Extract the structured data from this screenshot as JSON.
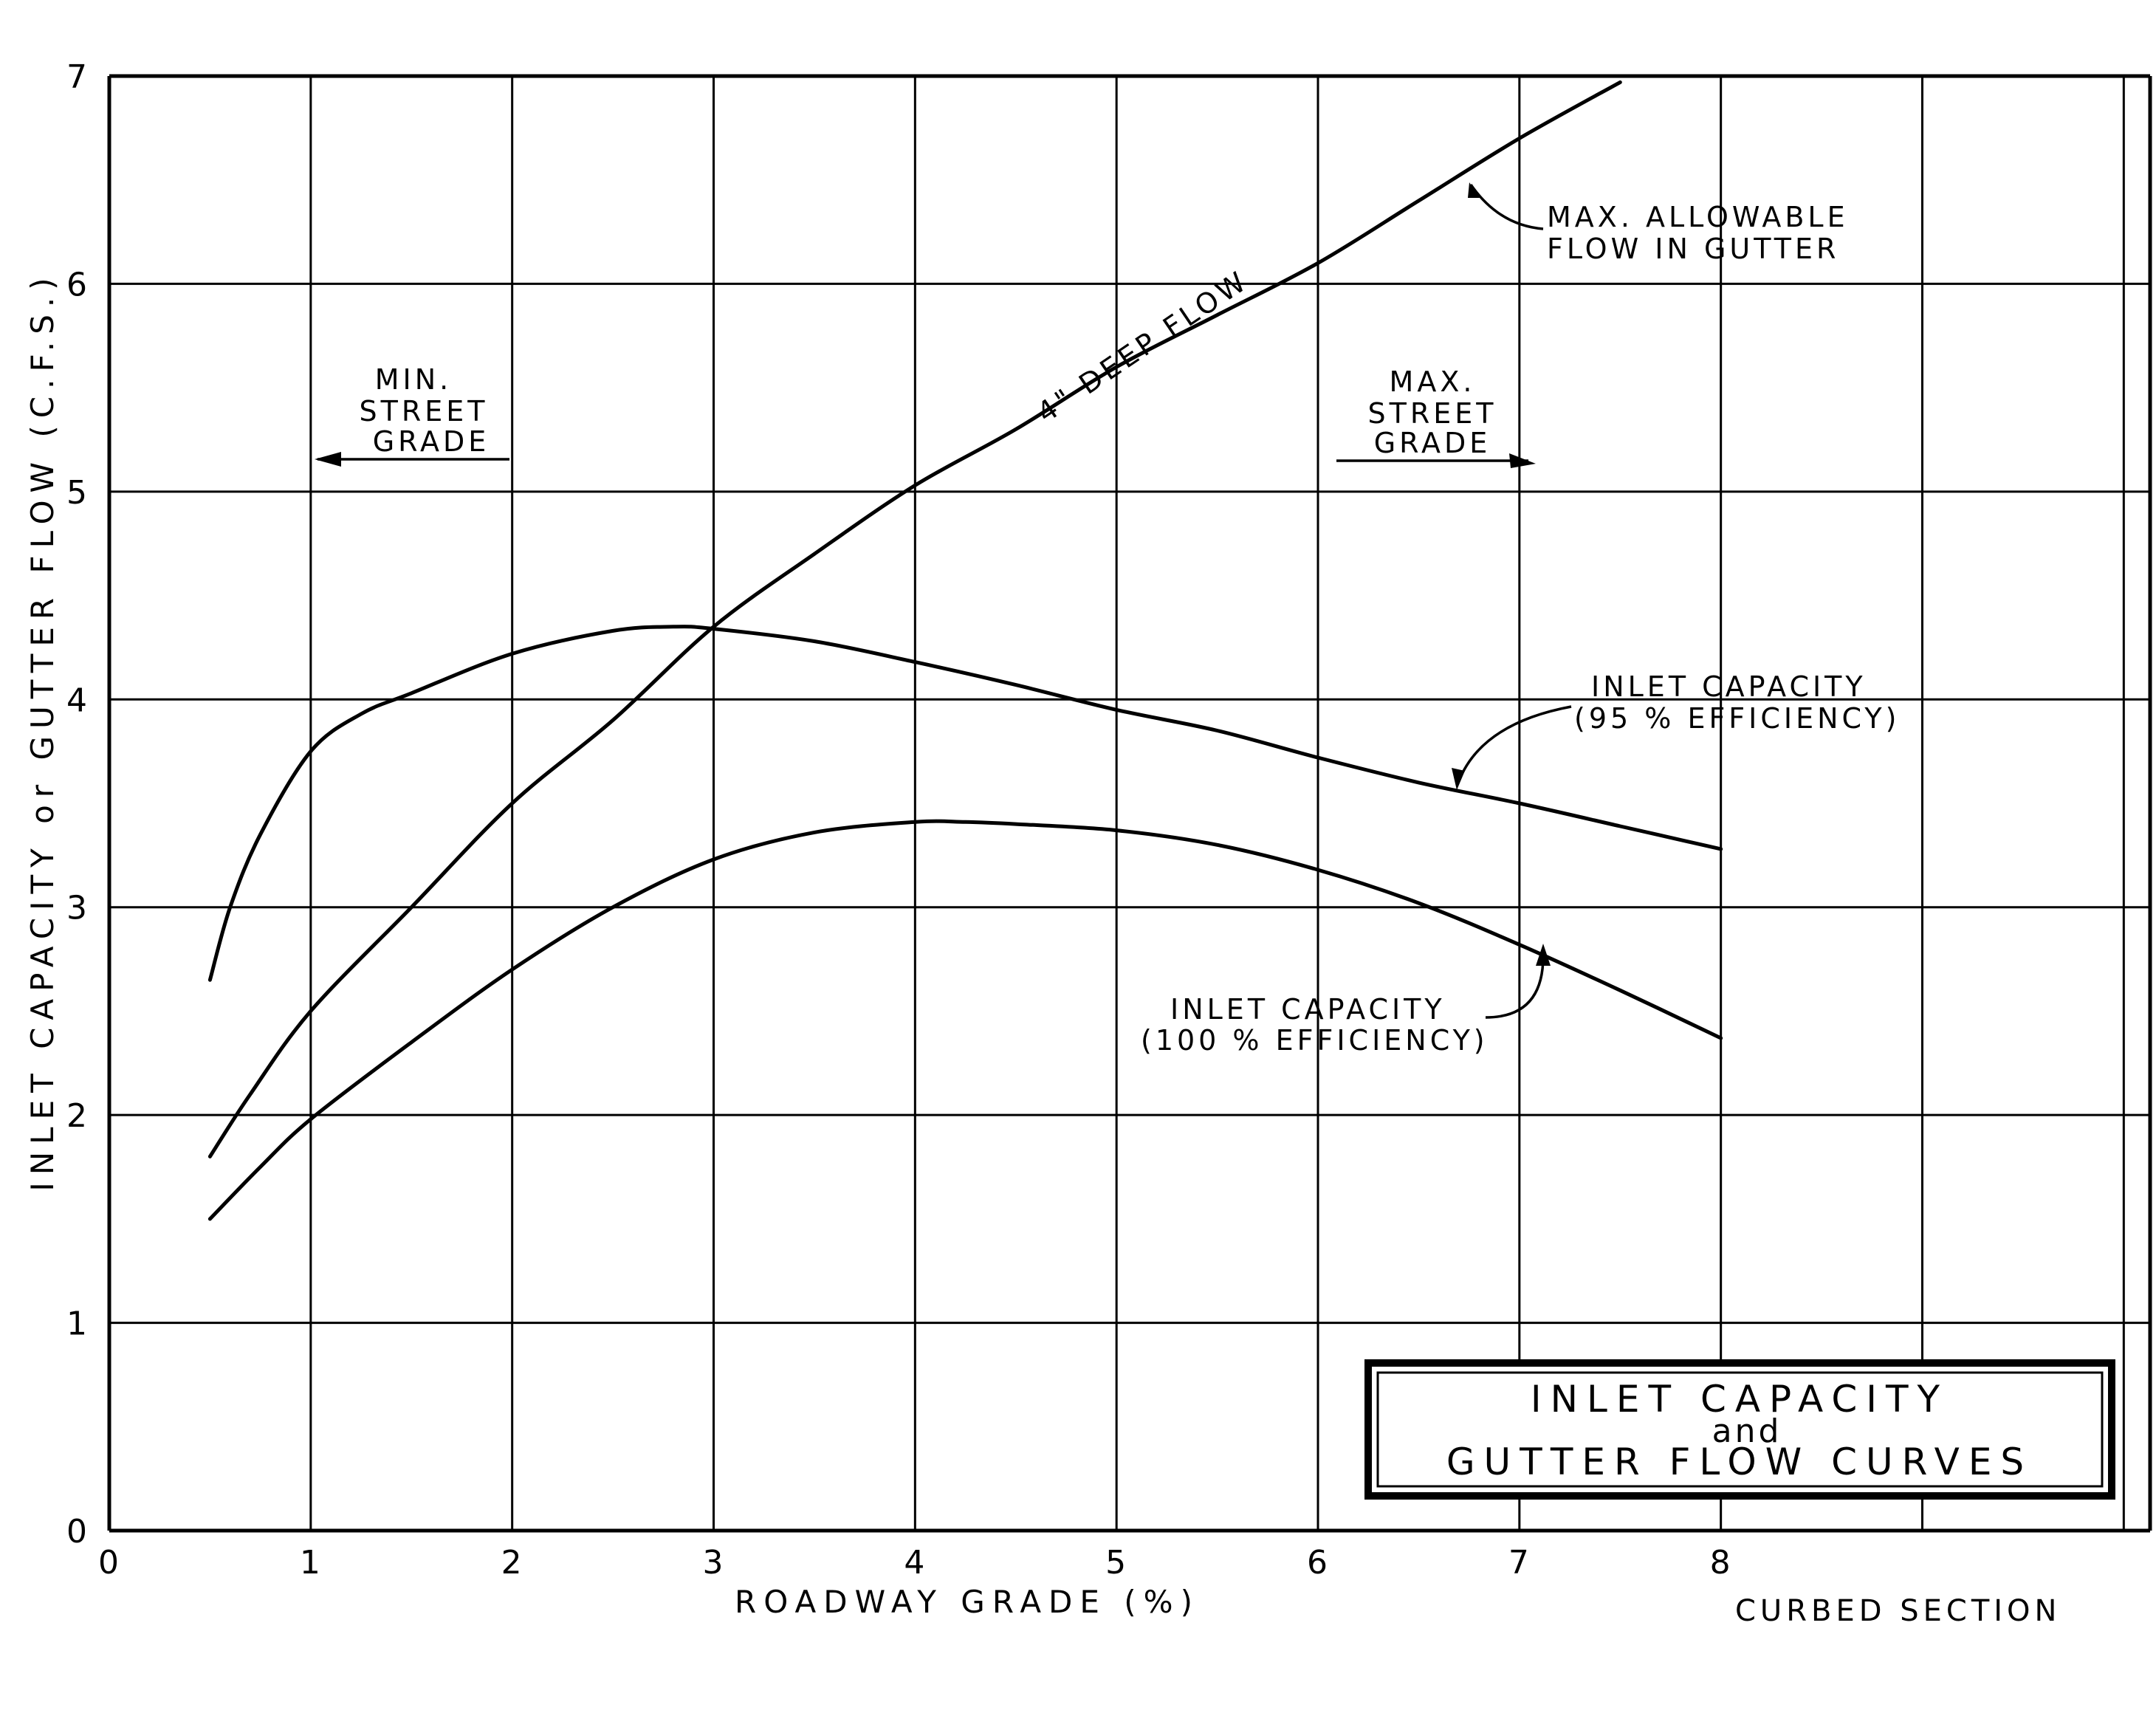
{
  "chart_data": {
    "type": "line",
    "title": "INLET CAPACITY and GUTTER FLOW CURVES",
    "title_lines": [
      "INLET   CAPACITY",
      "and",
      "GUTTER   FLOW   CURVES"
    ],
    "xlabel": "ROADWAY   GRADE   (%)",
    "ylabel": "INLET  CAPACITY  or  GUTTER  FLOW  (C.F.S.)",
    "xlim": [
      0,
      10
    ],
    "ylim": [
      0,
      7
    ],
    "x_ticks": [
      0,
      1,
      2,
      3,
      4,
      5,
      6,
      7,
      8
    ],
    "y_ticks": [
      0,
      1,
      2,
      3,
      4,
      5,
      6,
      7
    ],
    "grid": true,
    "section_label": "CURBED   SECTION",
    "series": [
      {
        "name": "4\" DEEP FLOW",
        "x": [
          0.5,
          0.7,
          1.0,
          1.5,
          2.0,
          2.5,
          3.0,
          3.5,
          4.0,
          4.5,
          5.0,
          5.5,
          6.0,
          6.5,
          7.0,
          7.5
        ],
        "y": [
          1.8,
          2.1,
          2.5,
          3.0,
          3.5,
          3.9,
          4.35,
          4.7,
          5.03,
          5.3,
          5.6,
          5.85,
          6.1,
          6.4,
          6.7,
          6.97
        ]
      },
      {
        "name": "INLET CAPACITY (95% EFFICIENCY)",
        "x": [
          0.5,
          0.6,
          0.75,
          1.0,
          1.25,
          1.5,
          2.0,
          2.5,
          2.8,
          3.0,
          3.5,
          4.0,
          4.5,
          5.0,
          5.5,
          6.0,
          6.5,
          7.0,
          7.5,
          8.0
        ],
        "y": [
          2.65,
          3.0,
          3.35,
          3.75,
          3.93,
          4.03,
          4.22,
          4.33,
          4.35,
          4.34,
          4.28,
          4.18,
          4.07,
          3.95,
          3.85,
          3.72,
          3.6,
          3.5,
          3.39,
          3.28
        ]
      },
      {
        "name": "INLET CAPACITY (100% EFFICIENCY)",
        "x": [
          0.5,
          0.75,
          1.0,
          1.5,
          2.0,
          2.5,
          3.0,
          3.5,
          4.0,
          4.25,
          4.5,
          5.0,
          5.5,
          6.0,
          6.5,
          7.0,
          7.5,
          8.0
        ],
        "y": [
          1.5,
          1.75,
          1.98,
          2.35,
          2.7,
          3.0,
          3.23,
          3.36,
          3.41,
          3.41,
          3.4,
          3.37,
          3.3,
          3.18,
          3.02,
          2.82,
          2.6,
          2.37
        ]
      }
    ],
    "annotations": {
      "deep_flow": "4\" DEEP FLOW",
      "max_allowable": [
        "MAX.   ALLOWABLE",
        "FLOW   IN   GUTTER"
      ],
      "min_street_grade": [
        "MIN.",
        "STREET",
        "GRADE"
      ],
      "max_street_grade": [
        "MAX.",
        "STREET",
        "GRADE"
      ],
      "inlet_95": [
        "INLET   CAPACITY",
        "(95 %  EFFICIENCY)"
      ],
      "inlet_100": [
        "INLET   CAPACITY",
        "(100 %  EFFICIENCY)"
      ]
    }
  }
}
